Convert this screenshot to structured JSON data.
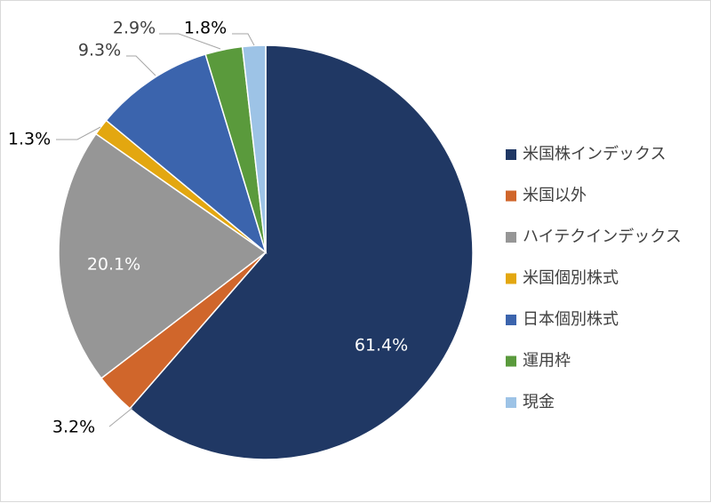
{
  "chart_data": {
    "type": "pie",
    "title": "",
    "series": [
      {
        "name": "米国株インデックス",
        "value": 61.4,
        "label": "61.4%",
        "color": "#203864"
      },
      {
        "name": "米国以外",
        "value": 3.2,
        "label": "3.2%",
        "color": "#d0662b"
      },
      {
        "name": "ハイテクインデックス",
        "value": 20.1,
        "label": "20.1%",
        "color": "#969696"
      },
      {
        "name": "米国個別株式",
        "value": 1.3,
        "label": "1.3%",
        "color": "#e3a710"
      },
      {
        "name": "日本個別株式",
        "value": 9.3,
        "label": "9.3%",
        "color": "#3b64ad"
      },
      {
        "name": "運用枠",
        "value": 2.9,
        "label": "2.9%",
        "color": "#5a9a3c"
      },
      {
        "name": "現金",
        "value": 1.8,
        "label": "1.8%",
        "color": "#9dc3e6"
      }
    ],
    "start_angle": "12 o'clock",
    "direction": "clockwise",
    "legend_position": "right"
  }
}
